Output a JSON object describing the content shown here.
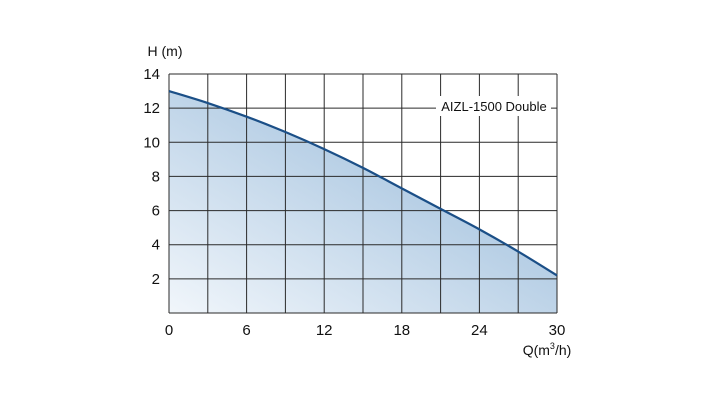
{
  "chart_data": {
    "type": "area",
    "title": "",
    "ylabel": "H (m)",
    "xlabel_base": "Q(m",
    "xlabel_sup": "3",
    "xlabel_tail": "/h)",
    "xlim": [
      0,
      30
    ],
    "ylim": [
      0,
      14
    ],
    "x_ticks": [
      0,
      6,
      12,
      18,
      24,
      30
    ],
    "y_ticks": [
      2,
      4,
      6,
      8,
      10,
      12,
      14
    ],
    "grid": true,
    "grid_x_step": 3,
    "grid_y_step": 2,
    "series": [
      {
        "name": "AIZL-1500 Double",
        "x": [
          0,
          3,
          6,
          9,
          12,
          15,
          18,
          21,
          24,
          27,
          30
        ],
        "y": [
          13.0,
          12.3,
          11.5,
          10.6,
          9.6,
          8.5,
          7.3,
          6.1,
          4.9,
          3.6,
          2.2
        ]
      }
    ],
    "colors": {
      "line": "#1b4f87",
      "fill_dark": "#8db3d6",
      "fill_light": "#f1f6fb",
      "grid": "#2a2a2a",
      "background": "#ffffff"
    }
  }
}
